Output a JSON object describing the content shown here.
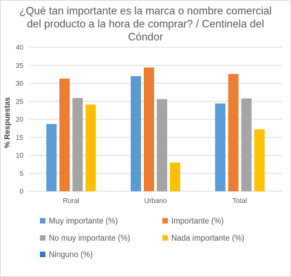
{
  "chart_data": {
    "type": "bar",
    "title": "¿Qué tan importante es la  marca o nombre comercial del producto a la hora de comprar? / Centinela del Cóndor",
    "xlabel": "",
    "ylabel": "% Respuestas",
    "ylim": [
      0,
      40
    ],
    "yticks": [
      0,
      5,
      10,
      15,
      20,
      25,
      30,
      35,
      40
    ],
    "categories": [
      "Rural",
      "Urbano",
      "Total"
    ],
    "grid": true,
    "legend_position": "bottom",
    "series": [
      {
        "name": "Muy importante (%)",
        "color": "#5b9bd5",
        "values": [
          18.7,
          32.0,
          24.4
        ]
      },
      {
        "name": "Importante (%)",
        "color": "#ed7d31",
        "values": [
          31.3,
          34.4,
          32.6
        ]
      },
      {
        "name": "No muy importante (%)",
        "color": "#a5a5a5",
        "values": [
          25.9,
          25.6,
          25.8
        ]
      },
      {
        "name": "Nada importante (%)",
        "color": "#ffc000",
        "values": [
          24.1,
          8.0,
          17.2
        ]
      },
      {
        "name": "Ninguno (%)",
        "color": "#4472c4",
        "values": [
          0,
          0,
          0
        ]
      }
    ]
  }
}
